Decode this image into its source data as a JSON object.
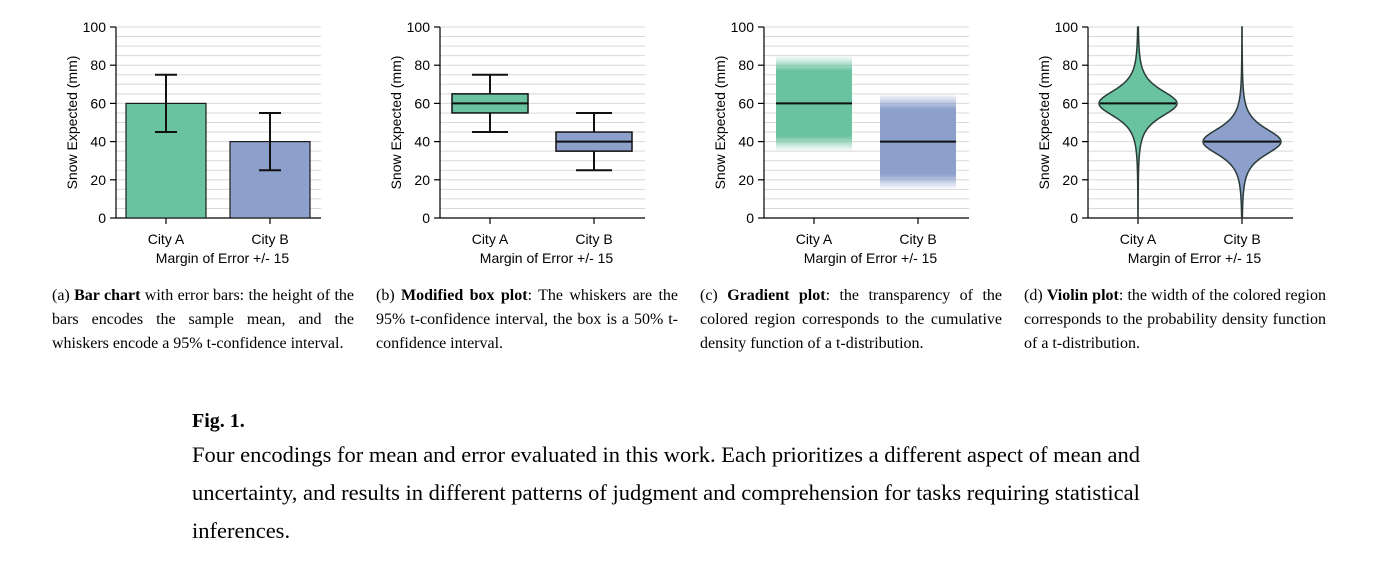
{
  "colors": {
    "city_a": "#6ac3a0",
    "city_b": "#8da0cb",
    "grid": "#d9d9d9",
    "outline": "#1a1a1a"
  },
  "chart_data": [
    {
      "type": "bar",
      "panel_id": "a",
      "categories": [
        "City A",
        "City B"
      ],
      "values": [
        60,
        40
      ],
      "error_low": [
        45,
        25
      ],
      "error_high": [
        75,
        55
      ],
      "xlabel": "Margin of Error +/- 15",
      "ylabel": "Snow Expected (mm)",
      "ylim": [
        0,
        100
      ],
      "yticks": [
        0,
        20,
        40,
        60,
        80,
        100
      ],
      "grid": true
    },
    {
      "type": "box",
      "panel_id": "b",
      "categories": [
        "City A",
        "City B"
      ],
      "median": [
        60,
        40
      ],
      "box_low": [
        55,
        35
      ],
      "box_high": [
        65,
        45
      ],
      "whisker_low": [
        45,
        25
      ],
      "whisker_high": [
        75,
        55
      ],
      "xlabel": "Margin of Error +/- 15",
      "ylabel": "Snow Expected (mm)",
      "ylim": [
        0,
        100
      ],
      "yticks": [
        0,
        20,
        40,
        60,
        80,
        100
      ],
      "grid": true
    },
    {
      "type": "gradient",
      "panel_id": "c",
      "categories": [
        "City A",
        "City B"
      ],
      "mean": [
        60,
        40
      ],
      "solid_low": [
        43,
        23
      ],
      "solid_high": [
        77,
        57
      ],
      "fade_low": [
        35,
        15
      ],
      "fade_high": [
        85,
        65
      ],
      "xlabel": "Margin of Error +/- 15",
      "ylabel": "Snow Expected (mm)",
      "ylim": [
        0,
        100
      ],
      "yticks": [
        0,
        20,
        40,
        60,
        80,
        100
      ],
      "grid": true
    },
    {
      "type": "violin",
      "panel_id": "d",
      "categories": [
        "City A",
        "City B"
      ],
      "mean": [
        60,
        40
      ],
      "scale": [
        7.5,
        7.5
      ],
      "xlabel": "Margin of Error +/- 15",
      "ylabel": "Snow Expected (mm)",
      "ylim": [
        0,
        100
      ],
      "yticks": [
        0,
        20,
        40,
        60,
        80,
        100
      ],
      "grid": true
    }
  ],
  "captions": [
    {
      "prefix": "(a) ",
      "bold": "Bar chart",
      "text": " with error bars: the height of the bars encodes the sample mean, and the whiskers encode a 95% t-confidence interval."
    },
    {
      "prefix": "(b) ",
      "bold": "Modified box plot",
      "text": ": The whiskers are the 95% t-confidence interval, the box is a 50% t-confidence interval."
    },
    {
      "prefix": "(c) ",
      "bold": "Gradient plot",
      "text": ": the transparency of the colored region corresponds to the cumulative density function of a t-distribution."
    },
    {
      "prefix": "(d) ",
      "bold": "Violin plot",
      "text": ": the width of the colored region corresponds to the probability density function of a t-distribution."
    }
  ],
  "figure": {
    "label": "Fig. 1.",
    "text": "Four encodings for mean and error evaluated in this work. Each prioritizes a different aspect of mean and uncertainty, and results in different patterns of judgment and comprehension for tasks requiring statistical inferences."
  }
}
